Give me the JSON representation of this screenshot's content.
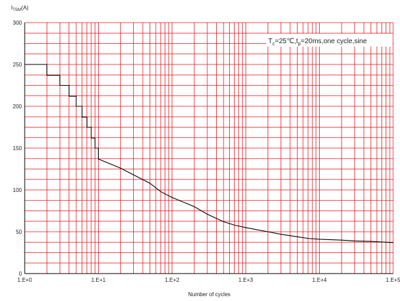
{
  "chart_data": {
    "type": "line",
    "title": "",
    "xlabel": "Number of cycles",
    "ylabel": {
      "main": "I",
      "sub": "TSM",
      "unit": "(A)"
    },
    "x_scale": "log",
    "xlim": [
      1,
      100000
    ],
    "ylim": [
      0,
      300
    ],
    "grid": true,
    "grid_color": "#e8151b",
    "line_color": "#000000",
    "x_tick_labels": [
      "1.E+0",
      "1.E+1",
      "1.E+2",
      "1.E+3",
      "1.E+4",
      "1.E+5"
    ],
    "y_tick_labels": [
      "0",
      "50",
      "100",
      "150",
      "200",
      "250",
      "300"
    ],
    "annotation": {
      "parts": [
        {
          "t": "T",
          "sub": false
        },
        {
          "t": "c",
          "sub": true
        },
        {
          "t": "=25℃,t",
          "sub": false
        },
        {
          "t": "p",
          "sub": true
        },
        {
          "t": "=20ms,one cycle,sine",
          "sub": false
        }
      ]
    },
    "series": [
      {
        "x": [
          1,
          2,
          2,
          3,
          3,
          4,
          4,
          5,
          5,
          6,
          6,
          7,
          7,
          8,
          8,
          9,
          9,
          10,
          10,
          20,
          30,
          50,
          70,
          100,
          200,
          300,
          500,
          700,
          1000,
          2000,
          3000,
          5000,
          7000,
          10000,
          20000,
          30000,
          50000,
          100000
        ],
        "y": [
          250,
          250,
          237,
          237,
          225,
          225,
          212,
          212,
          200,
          200,
          187,
          187,
          175,
          175,
          162,
          162,
          150,
          150,
          137,
          126,
          118,
          108,
          98,
          91,
          80,
          71,
          62,
          58,
          55,
          50,
          47,
          44,
          42,
          41,
          40,
          39,
          38.5,
          37
        ]
      }
    ]
  }
}
